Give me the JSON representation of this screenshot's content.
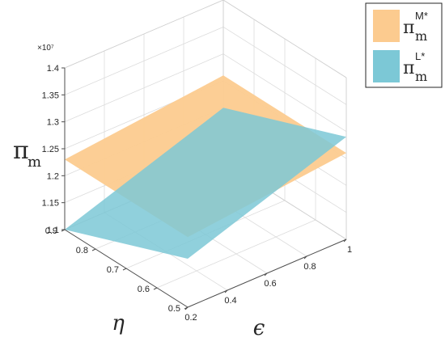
{
  "chart_data": {
    "type": "surface3d",
    "axes": {
      "x": {
        "label": "ϵ",
        "range": [
          0.2,
          1.0
        ],
        "ticks": [
          "0.2",
          "0.4",
          "0.6",
          "0.8",
          "1"
        ]
      },
      "y": {
        "label": "η",
        "range": [
          0.5,
          0.9
        ],
        "ticks": [
          "0.5",
          "0.6",
          "0.7",
          "0.8",
          "0.9"
        ]
      },
      "z": {
        "label": "π",
        "label_sub": "m",
        "range": [
          1.1,
          1.4
        ],
        "exponent": "×10⁷",
        "ticks": [
          "1.1",
          "1.15",
          "1.2",
          "1.25",
          "1.3",
          "1.35",
          "1.4"
        ]
      }
    },
    "grid": true,
    "legend_position": "top-right",
    "series": [
      {
        "name": "π",
        "name_sub": "m",
        "name_sup": "M*",
        "color": "#FCCB8F",
        "corners": {
          "x0_y0": 1.23,
          "x0_y1": 1.23,
          "x1_y0": 1.26,
          "x1_y1": 1.26
        }
      },
      {
        "name": "π",
        "name_sub": "m",
        "name_sup": "L*",
        "color": "#7CC8D6",
        "corners": {
          "x0_y0": 1.19,
          "x0_y1": 1.1,
          "x1_y0": 1.29,
          "x1_y1": 1.2
        }
      }
    ]
  }
}
